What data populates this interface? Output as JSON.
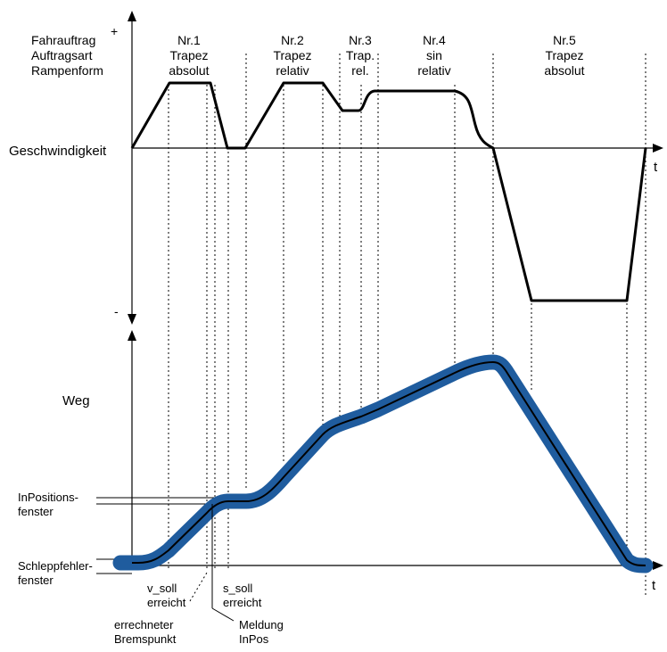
{
  "header_labels": {
    "line1": "Fahrauftrag",
    "line2": "Auftragsart",
    "line3": "Rampenform",
    "plus": "+",
    "minus": "-"
  },
  "jobs": [
    {
      "nr": "Nr.1",
      "type": "Trapez",
      "mode": "absolut"
    },
    {
      "nr": "Nr.2",
      "type": "Trapez",
      "mode": "relativ"
    },
    {
      "nr": "Nr.3",
      "type": "Trap.",
      "mode": "rel."
    },
    {
      "nr": "Nr.4",
      "type": "sin",
      "mode": "relativ"
    },
    {
      "nr": "Nr.5",
      "type": "Trapez",
      "mode": "absolut"
    }
  ],
  "axes": {
    "velocity": "Geschwindigkeit",
    "position": "Weg",
    "time_top": "t",
    "time_bottom": "t"
  },
  "windows": {
    "inpos_line1": "InPositions-",
    "inpos_line2": "fenster",
    "drag_line1": "Schleppfehler-",
    "drag_line2": "fenster"
  },
  "annotations": {
    "v_soll_1": "v_soll",
    "v_soll_2": "erreicht",
    "s_soll_1": "s_soll",
    "s_soll_2": "erreicht",
    "brake_1": "errechneter",
    "brake_2": "Bremspunkt",
    "inpos_msg_1": "Meldung",
    "inpos_msg_2": "InPos"
  },
  "colors": {
    "band": "#1f5c9e",
    "line": "#000000"
  }
}
